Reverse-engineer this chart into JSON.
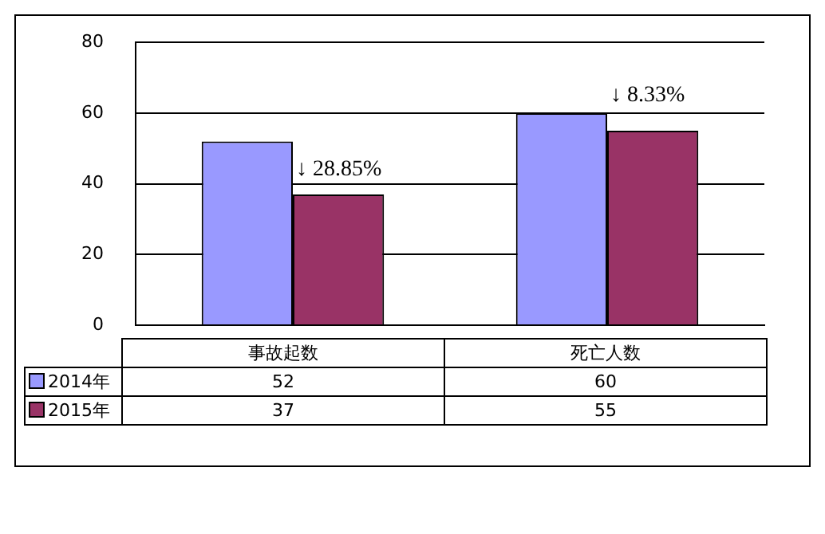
{
  "chart_data": {
    "type": "bar",
    "categories": [
      "事故起数",
      "死亡人数"
    ],
    "series": [
      {
        "name": "2014年",
        "color": "#9999ff",
        "values": [
          52,
          60
        ]
      },
      {
        "name": "2015年",
        "color": "#993366",
        "values": [
          37,
          55
        ]
      }
    ],
    "ylim": [
      0,
      80
    ],
    "yticks": [
      0,
      20,
      40,
      60,
      80
    ],
    "grid": "y",
    "legend": "bottom",
    "data_labels": true,
    "annotations": [
      {
        "text": "↓ 28.85%",
        "x": "事故起数",
        "y": 41
      },
      "↓ 8.33%"
    ]
  }
}
